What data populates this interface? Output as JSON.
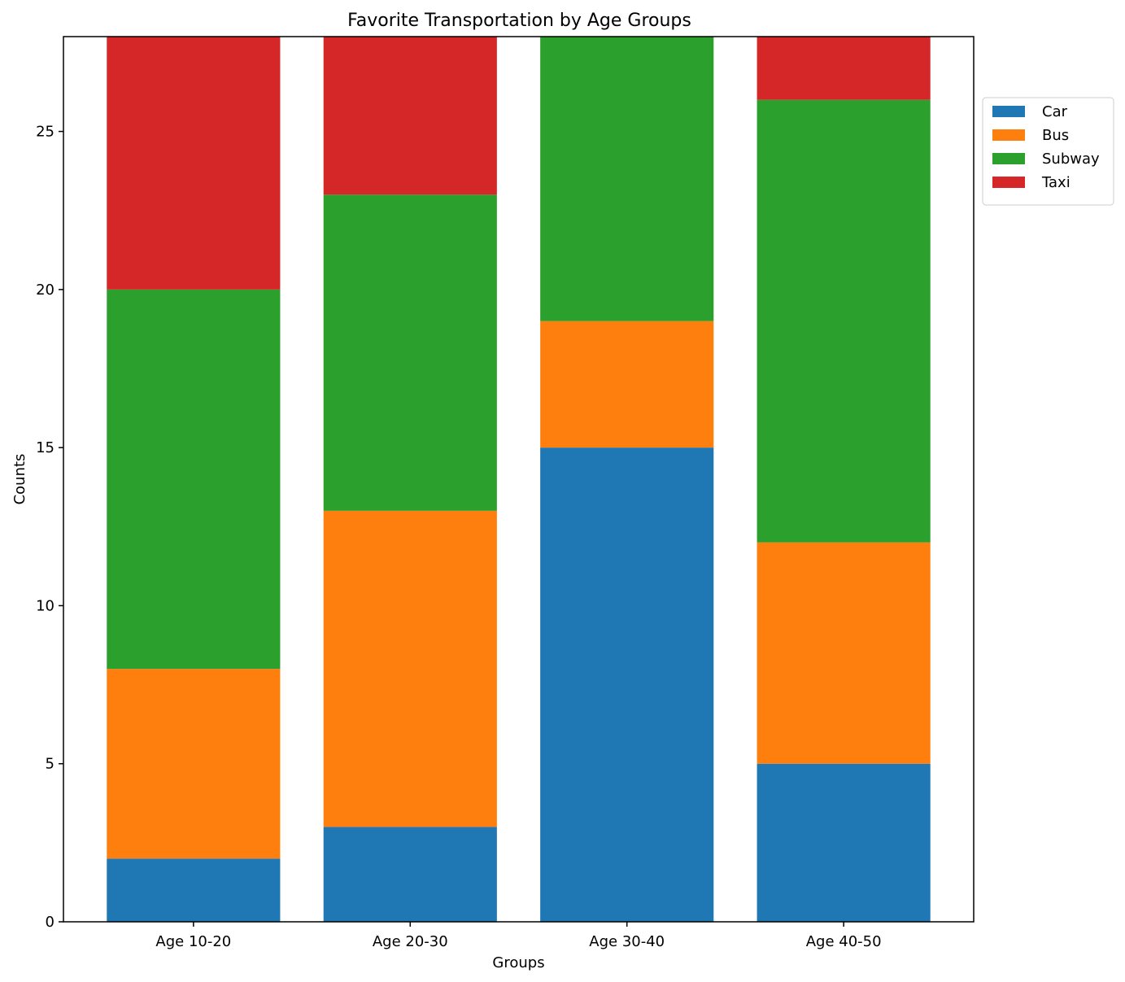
{
  "chart_data": {
    "type": "bar",
    "stacked": true,
    "title": "Favorite Transportation by Age Groups",
    "xlabel": "Groups",
    "ylabel": "Counts",
    "categories": [
      "Age 10-20",
      "Age 20-30",
      "Age 30-40",
      "Age 40-50"
    ],
    "series": [
      {
        "name": "Car",
        "values": [
          2,
          3,
          15,
          5
        ],
        "color": "#1f77b4"
      },
      {
        "name": "Bus",
        "values": [
          6,
          10,
          4,
          7
        ],
        "color": "#ff7f0e"
      },
      {
        "name": "Subway",
        "values": [
          12,
          10,
          10,
          14
        ],
        "color": "#2ca02c"
      },
      {
        "name": "Taxi",
        "values": [
          8,
          5,
          0,
          2
        ],
        "color": "#d62728"
      }
    ],
    "ylim": [
      0,
      28
    ],
    "yticks": [
      0,
      5,
      10,
      15,
      20,
      25
    ],
    "grid": false,
    "legend_position": "outside-top-right"
  }
}
